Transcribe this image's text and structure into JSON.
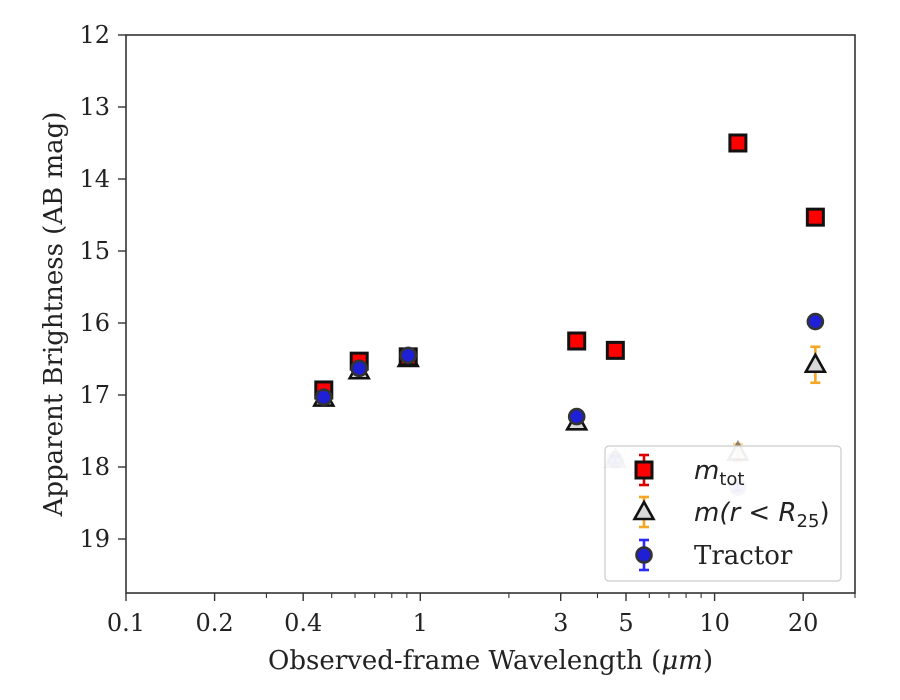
{
  "chart_data": {
    "type": "scatter",
    "xlabel_prefix": "Observed-frame Wavelength (",
    "xlabel_unit": "μm",
    "xlabel_suffix": ")",
    "ylabel": "Apparent Brightness (AB mag)",
    "x_scale": "log",
    "y_inverted": true,
    "xlim": [
      0.1,
      30
    ],
    "ylim": [
      19.75,
      12
    ],
    "x_ticks": [
      {
        "value": 0.1,
        "label": "0.1"
      },
      {
        "value": 0.2,
        "label": "0.2"
      },
      {
        "value": 0.4,
        "label": "0.4"
      },
      {
        "value": 1,
        "label": "1"
      },
      {
        "value": 3,
        "label": "3"
      },
      {
        "value": 5,
        "label": "5"
      },
      {
        "value": 10,
        "label": "10"
      },
      {
        "value": 20,
        "label": "20"
      }
    ],
    "x_minor_ticks": [
      0.3,
      0.5,
      0.6,
      0.7,
      0.8,
      0.9,
      2,
      4,
      6,
      7,
      8,
      9,
      30
    ],
    "y_ticks": [
      {
        "value": 12,
        "label": "12"
      },
      {
        "value": 13,
        "label": "13"
      },
      {
        "value": 14,
        "label": "14"
      },
      {
        "value": 15,
        "label": "15"
      },
      {
        "value": 16,
        "label": "16"
      },
      {
        "value": 17,
        "label": "17"
      },
      {
        "value": 18,
        "label": "18"
      },
      {
        "value": 19,
        "label": "19"
      }
    ],
    "grid": false,
    "legend_position": "lower-right",
    "series": [
      {
        "name_main": "m",
        "name_sub": "tot",
        "marker": "square",
        "fill": "#ff0000",
        "edge": "#111111",
        "errcolor": "#dd0000",
        "points": [
          {
            "x": 0.47,
            "y": 16.93,
            "yerr": 0.03
          },
          {
            "x": 0.62,
            "y": 16.53,
            "yerr": 0.03
          },
          {
            "x": 0.91,
            "y": 16.47,
            "yerr": 0.03
          },
          {
            "x": 3.4,
            "y": 16.25,
            "yerr": 0.03
          },
          {
            "x": 4.6,
            "y": 16.38,
            "yerr": 0.03
          },
          {
            "x": 12.0,
            "y": 13.5,
            "yerr": 0.03
          },
          {
            "x": 22.0,
            "y": 14.53,
            "yerr": 0.03
          }
        ]
      },
      {
        "name_main": "m(r < R",
        "name_sub": "25",
        "name_end": ")",
        "marker": "triangle",
        "fill": "#d9d9d9",
        "edge": "#111111",
        "errcolor": "#f5a623",
        "points": [
          {
            "x": 0.47,
            "y": 17.05,
            "yerr": 0.04,
            "alpha": 1
          },
          {
            "x": 0.62,
            "y": 16.67,
            "yerr": 0.04,
            "alpha": 1
          },
          {
            "x": 0.91,
            "y": 16.5,
            "yerr": 0.05,
            "alpha": 1
          },
          {
            "x": 3.4,
            "y": 17.38,
            "yerr": 0.05,
            "alpha": 1
          },
          {
            "x": 4.6,
            "y": 17.9,
            "yerr": 0.05,
            "alpha": 0.25
          },
          {
            "x": 12.0,
            "y": 17.8,
            "yerr": 0.12,
            "alpha": 0.45
          },
          {
            "x": 22.0,
            "y": 16.58,
            "yerr": 0.25,
            "alpha": 1
          }
        ]
      },
      {
        "name_main": "Tractor",
        "marker": "circle",
        "fill": "#1f1fd6",
        "edge": "#333333",
        "errcolor": "#2a2aff",
        "points": [
          {
            "x": 0.47,
            "y": 17.03,
            "yerr": 0.03,
            "alpha": 1
          },
          {
            "x": 0.62,
            "y": 16.63,
            "yerr": 0.03,
            "alpha": 1
          },
          {
            "x": 0.91,
            "y": 16.45,
            "yerr": 0.08,
            "alpha": 1
          },
          {
            "x": 3.4,
            "y": 17.3,
            "yerr": 0.06,
            "alpha": 1
          },
          {
            "x": 4.6,
            "y": 17.9,
            "yerr": 0.05,
            "alpha": 0.25
          },
          {
            "x": 12.0,
            "y": 18.28,
            "yerr": 0.05,
            "alpha": 0.3
          },
          {
            "x": 22.0,
            "y": 15.98,
            "yerr": 0.08,
            "alpha": 1
          }
        ]
      }
    ]
  }
}
